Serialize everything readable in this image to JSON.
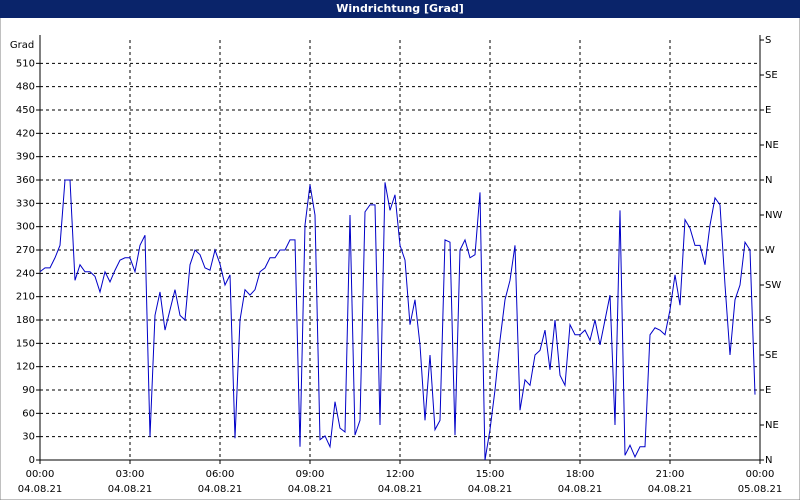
{
  "chart_data": {
    "type": "line",
    "title": "Windrichtung [Grad]",
    "ylabel": "Grad",
    "x": [
      0,
      10,
      20,
      30,
      40,
      50,
      60,
      70,
      80,
      90,
      100,
      110,
      120,
      130,
      140,
      150,
      160,
      170,
      180,
      190,
      200,
      210,
      220,
      230,
      240,
      250,
      260,
      270,
      280,
      290,
      300,
      310,
      320,
      330,
      340,
      350,
      360,
      370,
      380,
      390,
      400,
      410,
      420,
      430,
      440,
      450,
      460,
      470,
      480,
      490,
      500,
      510,
      520,
      530,
      540,
      550,
      560,
      570,
      580,
      590,
      600,
      610,
      620,
      630,
      640,
      650,
      660,
      670,
      680,
      690,
      700,
      710,
      720,
      730,
      740,
      750,
      760,
      770,
      780,
      790,
      800,
      810,
      820,
      830,
      840,
      850,
      860,
      870,
      880,
      890,
      900,
      910,
      920,
      930,
      940,
      950,
      960,
      970,
      980,
      990,
      1000,
      1010,
      1020,
      1030,
      1040,
      1050,
      1060,
      1070,
      1080,
      1090,
      1100,
      1110,
      1120,
      1130,
      1140,
      1150,
      1160,
      1170,
      1180,
      1190,
      1200,
      1210,
      1220,
      1230,
      1240,
      1250,
      1260,
      1270,
      1280,
      1290,
      1300,
      1310,
      1320,
      1330,
      1340,
      1350,
      1360,
      1370,
      1380,
      1390,
      1400,
      1410,
      1420,
      1430
    ],
    "series": [
      {
        "color": "#0000c8",
        "values": [
          242,
          247,
          247,
          260,
          276,
          360,
          360,
          231,
          251,
          242,
          242,
          236,
          216,
          242,
          229,
          244,
          257,
          260,
          260,
          242,
          276,
          289,
          30,
          186,
          216,
          167,
          193,
          219,
          186,
          180,
          251,
          270,
          264,
          247,
          244,
          270,
          252,
          225,
          238,
          28,
          180,
          219,
          212,
          219,
          242,
          247,
          260,
          260,
          270,
          270,
          283,
          283,
          17,
          302,
          354,
          315,
          26,
          31,
          17,
          75,
          41,
          36,
          315,
          32,
          51,
          319,
          328,
          328,
          45,
          357,
          321,
          341,
          276,
          257,
          174,
          206,
          148,
          51,
          135,
          39,
          51,
          283,
          280,
          32,
          270,
          283,
          260,
          264,
          344,
          0,
          39,
          90,
          154,
          206,
          231,
          276,
          64,
          103,
          96,
          135,
          141,
          167,
          116,
          180,
          109,
          96,
          174,
          161,
          161,
          167,
          154,
          180,
          148,
          180,
          212,
          45,
          321,
          6,
          19,
          4,
          17,
          17,
          161,
          170,
          167,
          161,
          193,
          238,
          199,
          309,
          298,
          276,
          276,
          251,
          302,
          337,
          328,
          225,
          135,
          206,
          225,
          280,
          270,
          84
        ]
      }
    ],
    "xlim": [
      0,
      1440
    ],
    "xticks": [
      {
        "value": 0,
        "label": "00:00"
      },
      {
        "value": 180,
        "label": "03:00"
      },
      {
        "value": 360,
        "label": "06:00"
      },
      {
        "value": 540,
        "label": "09:00"
      },
      {
        "value": 720,
        "label": "12:00"
      },
      {
        "value": 900,
        "label": "15:00"
      },
      {
        "value": 1080,
        "label": "18:00"
      },
      {
        "value": 1260,
        "label": "21:00"
      },
      {
        "value": 1440,
        "label": "00:00"
      }
    ],
    "xtick_dates": [
      "04.08.21",
      "04.08.21",
      "04.08.21",
      "04.08.21",
      "04.08.21",
      "04.08.21",
      "04.08.21",
      "04.08.21",
      "05.08.21"
    ],
    "ylim": [
      0,
      540
    ],
    "yticks": [
      0,
      30,
      60,
      90,
      120,
      150,
      180,
      210,
      240,
      270,
      300,
      330,
      360,
      390,
      420,
      450,
      480,
      510
    ],
    "y2lim": [
      0,
      540
    ],
    "y2ticks": [
      {
        "value": 0,
        "label": "N"
      },
      {
        "value": 45,
        "label": "NE"
      },
      {
        "value": 90,
        "label": "E"
      },
      {
        "value": 135,
        "label": "SE"
      },
      {
        "value": 180,
        "label": "S"
      },
      {
        "value": 225,
        "label": "SW"
      },
      {
        "value": 270,
        "label": "W"
      },
      {
        "value": 315,
        "label": "NW"
      },
      {
        "value": 360,
        "label": "N"
      },
      {
        "value": 405,
        "label": "NE"
      },
      {
        "value": 450,
        "label": "E"
      },
      {
        "value": 495,
        "label": "SE"
      },
      {
        "value": 540,
        "label": "S"
      }
    ],
    "grid": true
  }
}
